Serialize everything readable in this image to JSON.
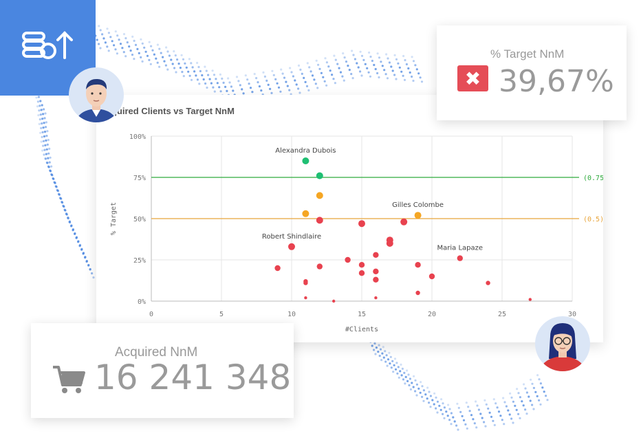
{
  "colors": {
    "accent_blue": "#4a86e0",
    "red": "#e8424f",
    "green": "#1fbf73",
    "orange": "#f5a623",
    "ref_green": "#2eaa3c",
    "ref_orange": "#e8a43a"
  },
  "icons": {
    "tile": "coins-up-icon",
    "target_status": "x-icon",
    "acquired": "shopping-cart-icon"
  },
  "kpi_target": {
    "label": "% Target NnM",
    "value": "39,67%",
    "status_glyph": "✖"
  },
  "kpi_acquired": {
    "label": "Acquired NnM",
    "value": "16 241 348"
  },
  "chart_data": {
    "type": "scatter",
    "title": "quired Clients vs Target NnM",
    "xlabel": "#Clients",
    "ylabel": "% Target",
    "xlim": [
      0,
      30
    ],
    "ylim": [
      0,
      1
    ],
    "x_ticks": [
      "0",
      "5",
      "10",
      "15",
      "20",
      "25",
      "30"
    ],
    "y_ticks": [
      "0%",
      "25%",
      "50%",
      "75%",
      "100%"
    ],
    "grid": true,
    "reference_lines": [
      {
        "y": 0.75,
        "label": "(0.75)",
        "color": "#2eaa3c"
      },
      {
        "y": 0.5,
        "label": "(0.5)",
        "color": "#e8a43a"
      }
    ],
    "annotations": [
      {
        "text": "Alexandra Dubois",
        "x": 11,
        "y": 0.85
      },
      {
        "text": "Gilles Colombe",
        "x": 19,
        "y": 0.52
      },
      {
        "text": "Robert Shindlaire",
        "x": 10,
        "y": 0.33
      },
      {
        "text": "Maria Lapaze",
        "x": 22,
        "y": 0.26
      }
    ],
    "points": [
      {
        "x": 11,
        "y": 0.85,
        "c": "green"
      },
      {
        "x": 12,
        "y": 0.76,
        "c": "green"
      },
      {
        "x": 12,
        "y": 0.64,
        "c": "orange"
      },
      {
        "x": 11,
        "y": 0.53,
        "c": "orange"
      },
      {
        "x": 19,
        "y": 0.52,
        "c": "orange"
      },
      {
        "x": 12,
        "y": 0.49,
        "c": "red"
      },
      {
        "x": 15,
        "y": 0.47,
        "c": "red"
      },
      {
        "x": 18,
        "y": 0.48,
        "c": "red"
      },
      {
        "x": 17,
        "y": 0.37,
        "c": "red"
      },
      {
        "x": 17,
        "y": 0.35,
        "c": "red"
      },
      {
        "x": 10,
        "y": 0.33,
        "c": "red"
      },
      {
        "x": 16,
        "y": 0.28,
        "c": "red"
      },
      {
        "x": 22,
        "y": 0.26,
        "c": "red"
      },
      {
        "x": 14,
        "y": 0.25,
        "c": "red"
      },
      {
        "x": 12,
        "y": 0.21,
        "c": "red"
      },
      {
        "x": 15,
        "y": 0.22,
        "c": "red"
      },
      {
        "x": 19,
        "y": 0.22,
        "c": "red"
      },
      {
        "x": 9,
        "y": 0.2,
        "c": "red"
      },
      {
        "x": 15,
        "y": 0.17,
        "c": "red"
      },
      {
        "x": 16,
        "y": 0.18,
        "c": "red"
      },
      {
        "x": 20,
        "y": 0.15,
        "c": "red"
      },
      {
        "x": 16,
        "y": 0.13,
        "c": "red"
      },
      {
        "x": 11,
        "y": 0.12,
        "c": "red"
      },
      {
        "x": 11,
        "y": 0.11,
        "c": "red"
      },
      {
        "x": 24,
        "y": 0.11,
        "c": "red"
      },
      {
        "x": 19,
        "y": 0.05,
        "c": "red"
      },
      {
        "x": 11,
        "y": 0.02,
        "c": "red"
      },
      {
        "x": 16,
        "y": 0.02,
        "c": "red"
      },
      {
        "x": 27,
        "y": 0.01,
        "c": "red"
      },
      {
        "x": 13,
        "y": 0.0,
        "c": "red"
      }
    ]
  }
}
